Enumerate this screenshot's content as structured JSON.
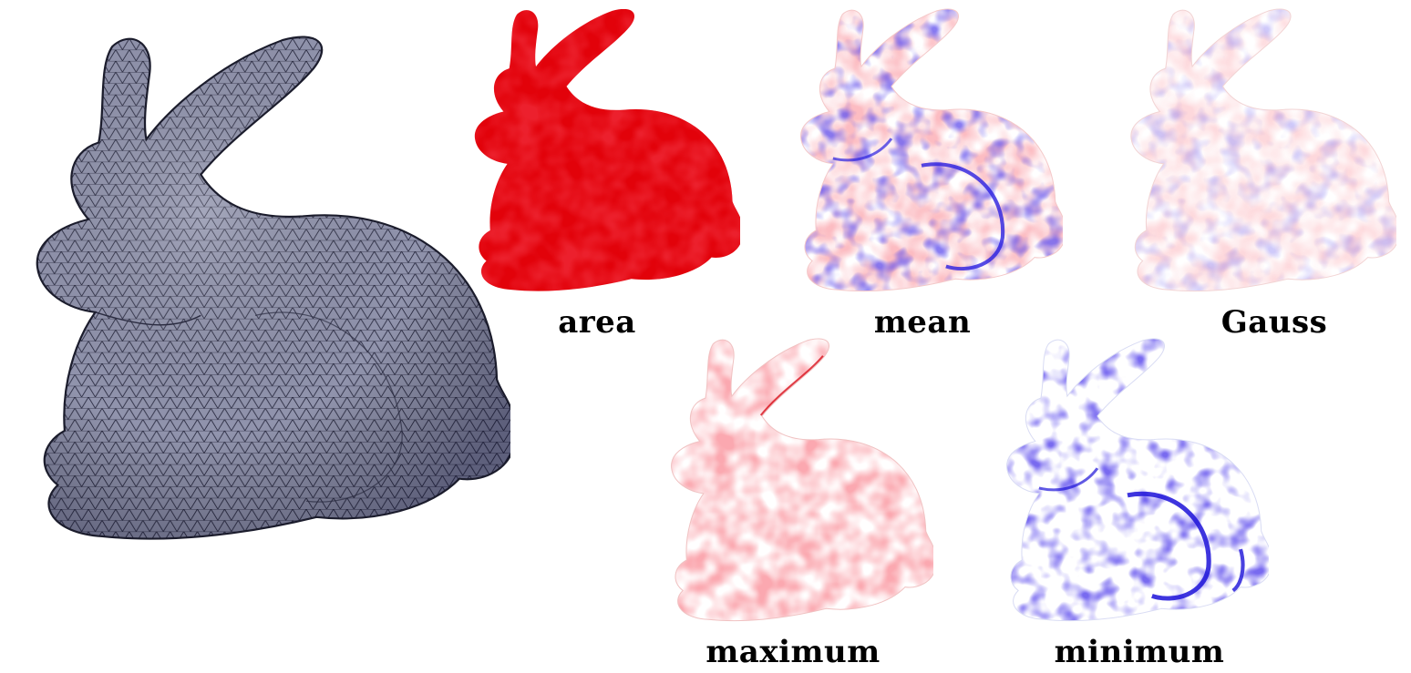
{
  "figure": {
    "main_render": {
      "kind": "wireframe-mesh-render",
      "surface_color": "#8e90a8",
      "edge_color": "#1b1c2c"
    },
    "colormap": {
      "positive_color": "#e8000a",
      "negative_color": "#1a10d8",
      "zero_color": "#ffffff"
    },
    "panels": [
      {
        "id": "area",
        "label": "area",
        "saturation_positive": 1.0,
        "saturation_negative": 0.0
      },
      {
        "id": "mean",
        "label": "mean",
        "saturation_positive": 0.35,
        "saturation_negative": 0.75
      },
      {
        "id": "gauss",
        "label": "Gauss",
        "saturation_positive": 0.2,
        "saturation_negative": 0.25
      },
      {
        "id": "maximum",
        "label": "maximum",
        "saturation_positive": 0.45,
        "saturation_negative": 0.0
      },
      {
        "id": "minimum",
        "label": "minimum",
        "saturation_positive": 0.0,
        "saturation_negative": 0.8
      }
    ]
  }
}
